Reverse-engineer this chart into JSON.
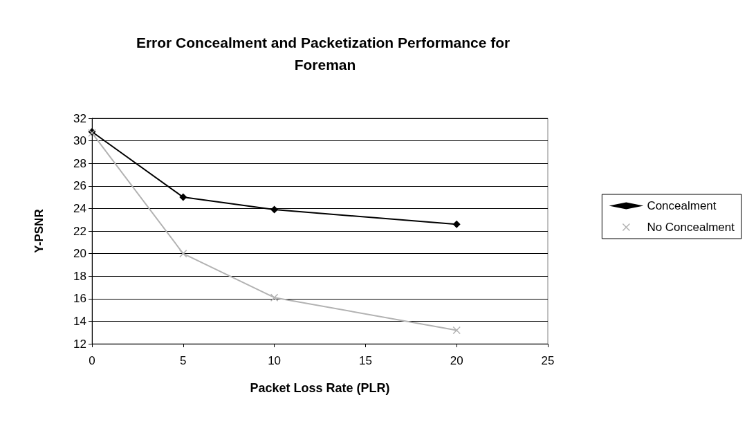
{
  "chart_data": {
    "type": "line",
    "title": "Error Concealment and Packetization Performance for Foreman",
    "xlabel": "Packet Loss Rate (PLR)",
    "ylabel": "Y-PSNR",
    "x": [
      0,
      5,
      10,
      20
    ],
    "series": [
      {
        "name": "Concealment",
        "color": "#000000",
        "marker": "diamond",
        "values": [
          30.8,
          25.0,
          23.9,
          22.6
        ]
      },
      {
        "name": "No Concealment",
        "color": "#b2b2b2",
        "marker": "cross",
        "values": [
          30.7,
          20.0,
          16.1,
          13.2
        ]
      }
    ],
    "xlim": [
      0,
      25
    ],
    "xticks": [
      0,
      5,
      10,
      15,
      20,
      25
    ],
    "ylim": [
      12,
      32
    ],
    "yticks": [
      12,
      14,
      16,
      18,
      20,
      22,
      24,
      26,
      28,
      30,
      32
    ],
    "grid": "y",
    "legend": "right",
    "line_style": "solid"
  }
}
